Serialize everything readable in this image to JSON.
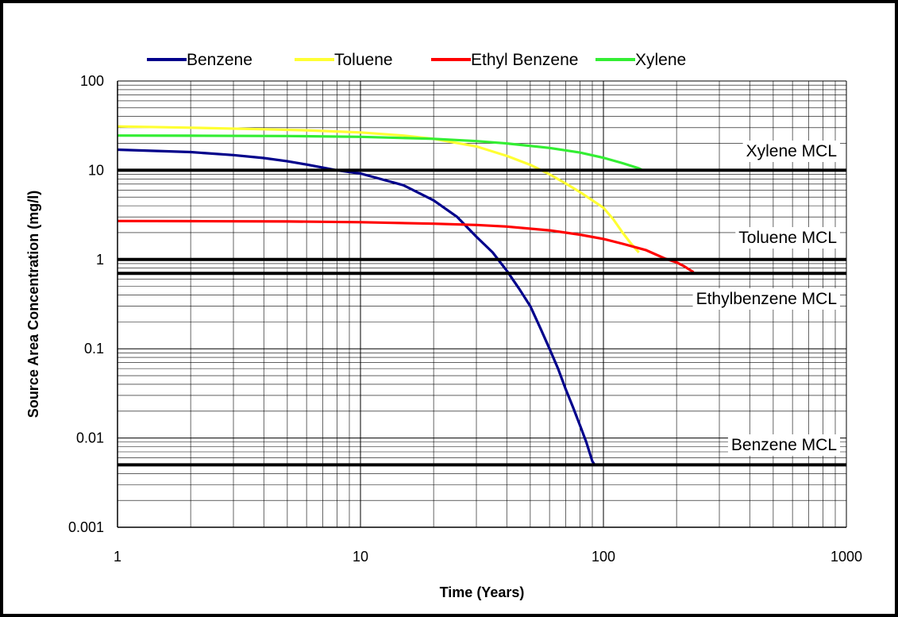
{
  "chart_data": {
    "type": "line",
    "xlabel": "Time (Years)",
    "ylabel": "Source Area Concentration (mg/l)",
    "x_scale": "log",
    "y_scale": "log",
    "xlim": [
      1,
      1000
    ],
    "ylim": [
      0.001,
      100
    ],
    "grid": true,
    "legend_position": "top",
    "x_ticks": [
      {
        "value": 1,
        "label": "1"
      },
      {
        "value": 10,
        "label": "10"
      },
      {
        "value": 100,
        "label": "100"
      },
      {
        "value": 1000,
        "label": "1000"
      }
    ],
    "y_ticks": [
      {
        "value": 100,
        "label": "100"
      },
      {
        "value": 10,
        "label": "10"
      },
      {
        "value": 1,
        "label": "1"
      },
      {
        "value": 0.1,
        "label": "0.1"
      },
      {
        "value": 0.01,
        "label": "0.01"
      },
      {
        "value": 0.001,
        "label": "0.001"
      }
    ],
    "series": [
      {
        "name": "Benzene",
        "color": "#00008B",
        "points": [
          [
            1,
            17
          ],
          [
            2,
            16
          ],
          [
            3,
            14.8
          ],
          [
            4,
            13.7
          ],
          [
            5,
            12.6
          ],
          [
            6,
            11.6
          ],
          [
            7,
            10.7
          ],
          [
            8,
            10
          ],
          [
            10,
            9.2
          ],
          [
            15,
            6.8
          ],
          [
            20,
            4.6
          ],
          [
            25,
            3
          ],
          [
            30,
            1.8
          ],
          [
            35,
            1.2
          ],
          [
            40,
            0.75
          ],
          [
            45,
            0.47
          ],
          [
            50,
            0.3
          ],
          [
            55,
            0.17
          ],
          [
            60,
            0.1
          ],
          [
            65,
            0.06
          ],
          [
            70,
            0.035
          ],
          [
            75,
            0.022
          ],
          [
            80,
            0.014
          ],
          [
            85,
            0.009
          ],
          [
            90,
            0.0055
          ],
          [
            92,
            0.005
          ]
        ]
      },
      {
        "name": "Toluene",
        "color": "#FFFF33",
        "points": [
          [
            1,
            31
          ],
          [
            2,
            30
          ],
          [
            4,
            28.8
          ],
          [
            6,
            28
          ],
          [
            8,
            27.2
          ],
          [
            10,
            26.5
          ],
          [
            15,
            24.5
          ],
          [
            20,
            22.5
          ],
          [
            30,
            18.5
          ],
          [
            40,
            14.5
          ],
          [
            50,
            11.5
          ],
          [
            60,
            9
          ],
          [
            70,
            7.1
          ],
          [
            80,
            5.7
          ],
          [
            100,
            3.8
          ],
          [
            110,
            2.8
          ],
          [
            120,
            2
          ],
          [
            130,
            1.5
          ],
          [
            140,
            1.2
          ]
        ]
      },
      {
        "name": "Ethyl Benzene",
        "color": "#FF0000",
        "points": [
          [
            1,
            2.7
          ],
          [
            2,
            2.69
          ],
          [
            5,
            2.67
          ],
          [
            10,
            2.62
          ],
          [
            20,
            2.52
          ],
          [
            30,
            2.44
          ],
          [
            40,
            2.34
          ],
          [
            60,
            2.12
          ],
          [
            80,
            1.9
          ],
          [
            100,
            1.7
          ],
          [
            120,
            1.5
          ],
          [
            150,
            1.27
          ],
          [
            180,
            1.02
          ],
          [
            200,
            0.93
          ],
          [
            215,
            0.84
          ],
          [
            235,
            0.72
          ]
        ]
      },
      {
        "name": "Xylene",
        "color": "#33EE33",
        "points": [
          [
            1,
            24.5
          ],
          [
            2,
            24.4
          ],
          [
            5,
            24.2
          ],
          [
            10,
            23.7
          ],
          [
            20,
            22.5
          ],
          [
            30,
            21.2
          ],
          [
            40,
            20
          ],
          [
            60,
            17.8
          ],
          [
            80,
            15.8
          ],
          [
            100,
            13.8
          ],
          [
            120,
            12
          ],
          [
            140,
            10.5
          ],
          [
            145,
            10
          ]
        ]
      }
    ],
    "reference_lines": [
      {
        "label": "Xylene MCL",
        "y": 10
      },
      {
        "label": "Toluene MCL",
        "y": 1
      },
      {
        "label": "Ethylbenzene MCL",
        "y": 0.7
      },
      {
        "label": "Benzene MCL",
        "y": 0.005
      }
    ]
  }
}
